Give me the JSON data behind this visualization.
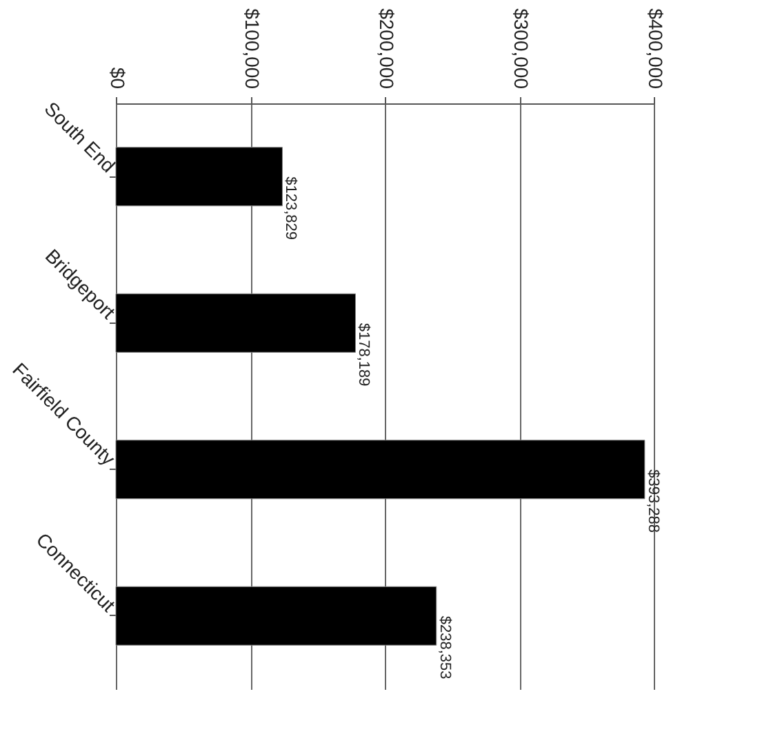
{
  "chart_data": {
    "type": "bar",
    "orientation": "horizontal",
    "categories": [
      "South End",
      "Bridgeport",
      "Fairfield County",
      "Connecticut"
    ],
    "values": [
      123829,
      178189,
      393288,
      238353
    ],
    "color": "#000000",
    "value_labels": [
      "$123,829",
      "$178,189",
      "$393,288",
      "$238,353"
    ],
    "xlim": [
      0,
      400000
    ],
    "xticks": [
      {
        "value": 0,
        "label": "$0"
      },
      {
        "value": 100000,
        "label": "$100,000"
      },
      {
        "value": 200000,
        "label": "$200,000"
      },
      {
        "value": 300000,
        "label": "$300,000"
      },
      {
        "value": 400000,
        "label": "$400,000"
      }
    ],
    "grid": "x"
  }
}
